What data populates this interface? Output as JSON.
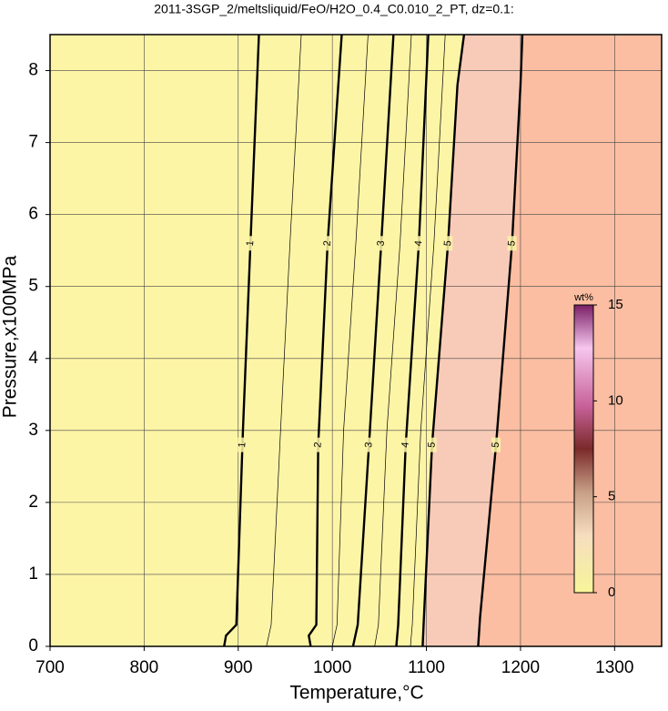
{
  "chart_data": {
    "type": "contour",
    "title": "2011-3SGP_2/meltsliquid/FeO/H2O_0.4_C0.010_2_PT, dz=0.1:",
    "xlabel": "Temperature,°C",
    "ylabel": "Pressure,x100MPa",
    "xlim": [
      700,
      1350
    ],
    "ylim": [
      0,
      8.5
    ],
    "xticks": [
      700,
      800,
      900,
      1000,
      1100,
      1200,
      1300
    ],
    "yticks": [
      0,
      1,
      2,
      3,
      4,
      5,
      6,
      7,
      8
    ],
    "grid": true,
    "background": "#fdf5a6",
    "contours": [
      {
        "level": 1,
        "major": true,
        "x": [
          885,
          887,
          898,
          905,
          913,
          922
        ],
        "y": [
          0,
          0.15,
          0.3,
          3,
          5.6,
          8.5
        ]
      },
      {
        "level": 1.5,
        "major": false,
        "x": [
          930,
          935,
          945,
          955,
          967
        ],
        "y": [
          0,
          0.3,
          3,
          5.6,
          8.5
        ]
      },
      {
        "level": 2,
        "major": true,
        "x": [
          977,
          975,
          983,
          985,
          995,
          1010
        ],
        "y": [
          0,
          0.15,
          0.3,
          2.8,
          5.6,
          8.5
        ]
      },
      {
        "level": 2.5,
        "major": false,
        "x": [
          1000,
          1005,
          1012,
          1025,
          1038
        ],
        "y": [
          0,
          0.3,
          3,
          5.6,
          8.5
        ]
      },
      {
        "level": 3,
        "major": true,
        "x": [
          1022,
          1027,
          1039,
          1052,
          1065
        ],
        "y": [
          0,
          0.3,
          2.8,
          5.6,
          8.5
        ]
      },
      {
        "level": 3.5,
        "major": false,
        "x": [
          1045,
          1049,
          1058,
          1072,
          1084
        ],
        "y": [
          0,
          0.3,
          3,
          5.6,
          8.5
        ]
      },
      {
        "level": 4,
        "major": true,
        "x": [
          1068,
          1070,
          1078,
          1092,
          1102
        ],
        "y": [
          0,
          0.3,
          2.8,
          5.6,
          8.5
        ]
      },
      {
        "level": 4.5,
        "major": false,
        "x": [
          1083,
          1085,
          1094,
          1108,
          1120
        ],
        "y": [
          0,
          0.3,
          3,
          5.6,
          8.5
        ]
      },
      {
        "level": 5,
        "major": true,
        "fill": "#f8cbb8",
        "x": [
          1096,
          1097,
          1106,
          1123,
          1133,
          1140
        ],
        "y": [
          0,
          0.3,
          2.8,
          5.6,
          7.8,
          8.5
        ]
      },
      {
        "level": 5,
        "major": true,
        "fill": "#fbbea2",
        "x": [
          1155,
          1157,
          1174,
          1191,
          1200,
          1202
        ],
        "y": [
          0,
          0.4,
          2.8,
          5.6,
          7.8,
          8.5
        ]
      }
    ],
    "colorbar": {
      "label": "wt%",
      "lim": [
        0,
        15
      ],
      "ticks": [
        0,
        5,
        10,
        15
      ]
    }
  }
}
